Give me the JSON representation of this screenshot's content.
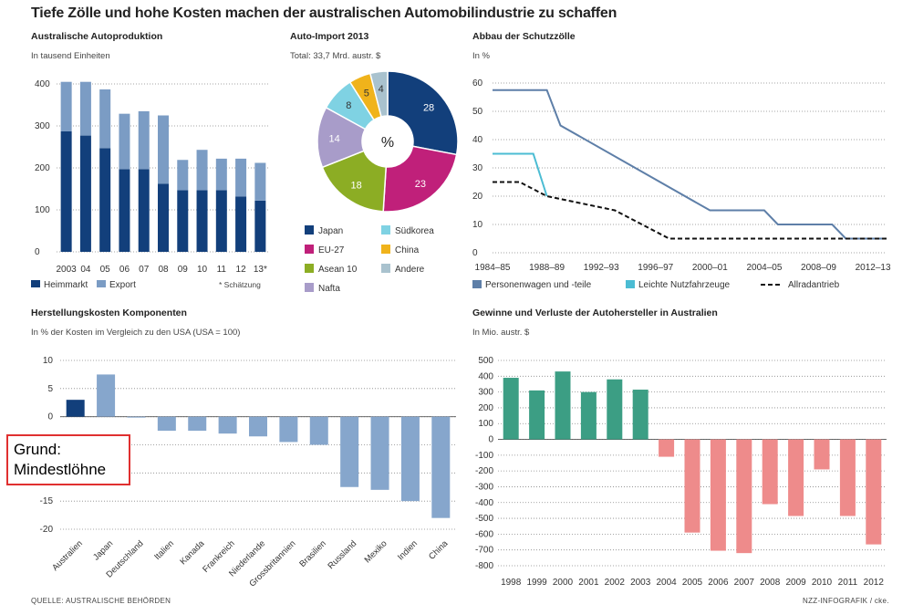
{
  "page": {
    "title": "Tiefe Zölle und hohe Kosten machen der australischen Automobilindustrie zu schaffen",
    "source": "QUELLE: AUSTRALISCHE BEHÖRDEN",
    "credit": "NZZ-INFOGRAFIK / cke.",
    "note_lines": [
      "Grund:",
      "Mindestlöhne"
    ],
    "colors": {
      "dark_blue": "#123f7b",
      "light_blue": "#7b9cc4",
      "comp_blue": "#86a6cc",
      "teal": "#3c9e84",
      "salmon": "#ee8b8b",
      "tariff_pkw": "#5e7fa8",
      "tariff_lnf": "#4bbcd3",
      "tariff_allrad": "#111111"
    }
  },
  "chart_data": [
    {
      "id": "production",
      "type": "bar",
      "stacked": true,
      "title": "Australische Autoproduktion",
      "subtitle": "In tausend Einheiten",
      "categories": [
        "2003",
        "04",
        "05",
        "06",
        "07",
        "08",
        "09",
        "10",
        "11",
        "12",
        "13*"
      ],
      "series": [
        {
          "name": "Heimmarkt",
          "color": "#123f7b",
          "values": [
            287,
            277,
            247,
            197,
            197,
            162,
            147,
            147,
            147,
            132,
            122
          ]
        },
        {
          "name": "Export",
          "color": "#7b9cc4",
          "values": [
            118,
            128,
            140,
            132,
            138,
            163,
            72,
            96,
            75,
            90,
            90
          ]
        }
      ],
      "ylim": [
        0,
        400
      ],
      "yticks": [
        0,
        100,
        200,
        300,
        400
      ],
      "footnote": "* Schätzung",
      "legend": "bottom",
      "grid": true
    },
    {
      "id": "import",
      "type": "pie",
      "donut": true,
      "title": "Auto-Import 2013",
      "subtitle": "Total: 33,7 Mrd. austr. $",
      "center_label": "%",
      "slices": [
        {
          "name": "Japan",
          "value": 28,
          "color": "#123f7b"
        },
        {
          "name": "EU-27",
          "value": 23,
          "color": "#c0207a"
        },
        {
          "name": "Asean 10",
          "value": 18,
          "color": "#8cad24"
        },
        {
          "name": "Nafta",
          "value": 14,
          "color": "#a89cc9"
        },
        {
          "name": "Südkorea",
          "value": 8,
          "color": "#7fd2e3"
        },
        {
          "name": "China",
          "value": 5,
          "color": "#f0b31b"
        },
        {
          "name": "Andere",
          "value": 4,
          "color": "#a9c2ce"
        }
      ],
      "legend_order": [
        "Japan",
        "Südkorea",
        "EU-27",
        "China",
        "Asean 10",
        "Andere",
        "Nafta"
      ]
    },
    {
      "id": "tariffs",
      "type": "line",
      "title": "Abbau der Schutzzölle",
      "subtitle": "In %",
      "x_labels": [
        "1984–85",
        "1988–89",
        "1992–93",
        "1996–97",
        "2000–01",
        "2004–05",
        "2008–09",
        "2012–13"
      ],
      "ylim": [
        0,
        60
      ],
      "yticks": [
        0,
        10,
        20,
        30,
        40,
        50,
        60
      ],
      "series": [
        {
          "name": "Personenwagen und -teile",
          "color": "#5e7fa8",
          "style": "solid",
          "x": [
            1984,
            1988,
            1989,
            2000,
            2004,
            2005,
            2009,
            2010,
            2013
          ],
          "y": [
            57.5,
            57.5,
            45,
            15,
            15,
            10,
            10,
            5,
            5
          ]
        },
        {
          "name": "Leichte Nutzfahrzeuge",
          "color": "#4bbcd3",
          "style": "solid",
          "x": [
            1984,
            1987,
            1988
          ],
          "y": [
            35,
            35,
            20
          ]
        },
        {
          "name": "Allradantrieb",
          "color": "#111111",
          "style": "dashed",
          "x": [
            1984,
            1986,
            1988,
            1993,
            1997,
            2013
          ],
          "y": [
            25,
            25,
            20,
            15,
            5,
            5
          ]
        }
      ],
      "legend": "bottom",
      "grid": true
    },
    {
      "id": "costs",
      "type": "bar",
      "title": "Herstellungskosten Komponenten",
      "subtitle": "In % der Kosten im Vergleich zu den USA (USA = 100)",
      "categories": [
        "Australien",
        "Japan",
        "Deutschland",
        "Italien",
        "Kanada",
        "Frankreich",
        "Niederlande",
        "Grossbritannien",
        "Brasilien",
        "Russland",
        "Mexiko",
        "Indien",
        "China"
      ],
      "values": [
        3,
        7.5,
        0,
        -2.5,
        -2.5,
        -3,
        -3.5,
        -4.5,
        -5,
        -12.5,
        -13,
        -15,
        -18
      ],
      "ylim": [
        -20,
        10
      ],
      "yticks": [
        10,
        5,
        0,
        -5,
        -10,
        -15,
        -20
      ],
      "grid": true
    },
    {
      "id": "profits",
      "type": "bar",
      "title": "Gewinne und Verluste der Autohersteller in Australien",
      "subtitle": "In Mio. austr. $",
      "categories": [
        "1998",
        "1999",
        "2000",
        "2001",
        "2002",
        "2003",
        "2004",
        "2005",
        "2006",
        "2007",
        "2008",
        "2009",
        "2010",
        "2011",
        "2012"
      ],
      "values": [
        390,
        310,
        430,
        300,
        380,
        315,
        -110,
        -590,
        -705,
        -720,
        -410,
        -485,
        -190,
        -485,
        -665
      ],
      "ylim": [
        -800,
        500
      ],
      "yticks": [
        500,
        400,
        300,
        200,
        100,
        0,
        -100,
        -200,
        -300,
        -400,
        -500,
        -600,
        -700,
        -800
      ],
      "grid": true
    }
  ]
}
